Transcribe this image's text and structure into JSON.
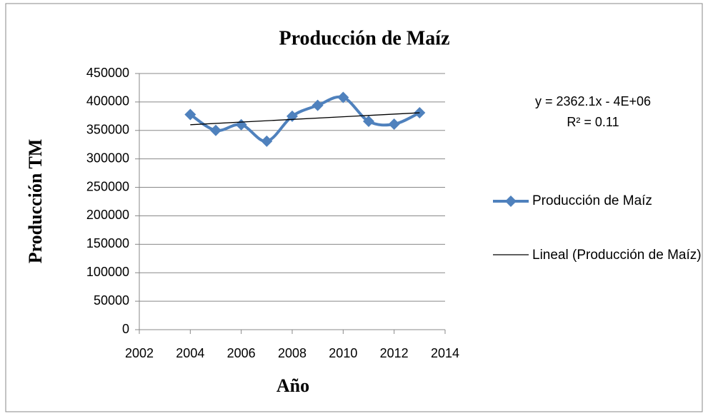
{
  "chart_data": {
    "type": "line",
    "title": "Producción de Maíz",
    "xlabel": "Año",
    "ylabel": "Producción TM",
    "x": [
      2004,
      2005,
      2006,
      2007,
      2008,
      2009,
      2010,
      2011,
      2012,
      2013
    ],
    "series": [
      {
        "name": "Producción de Maíz",
        "color": "#4f81bd",
        "values": [
          378000,
          350000,
          360000,
          331000,
          375000,
          394000,
          408000,
          366000,
          361000,
          381000
        ]
      },
      {
        "name": "Lineal (Producción de Maíz)",
        "color": "#000000",
        "x": [
          2004,
          2013
        ],
        "values": [
          360000,
          381000
        ]
      }
    ],
    "annotations": [
      "y = 2362.1x - 4E+06",
      "R² = 0.11"
    ],
    "xlim": [
      2002,
      2014
    ],
    "xticks": [
      2002,
      2004,
      2006,
      2008,
      2010,
      2012,
      2014
    ],
    "ylim": [
      0,
      450000
    ],
    "yticks": [
      0,
      50000,
      100000,
      150000,
      200000,
      250000,
      300000,
      350000,
      400000,
      450000
    ],
    "grid": true,
    "legend": "right"
  }
}
